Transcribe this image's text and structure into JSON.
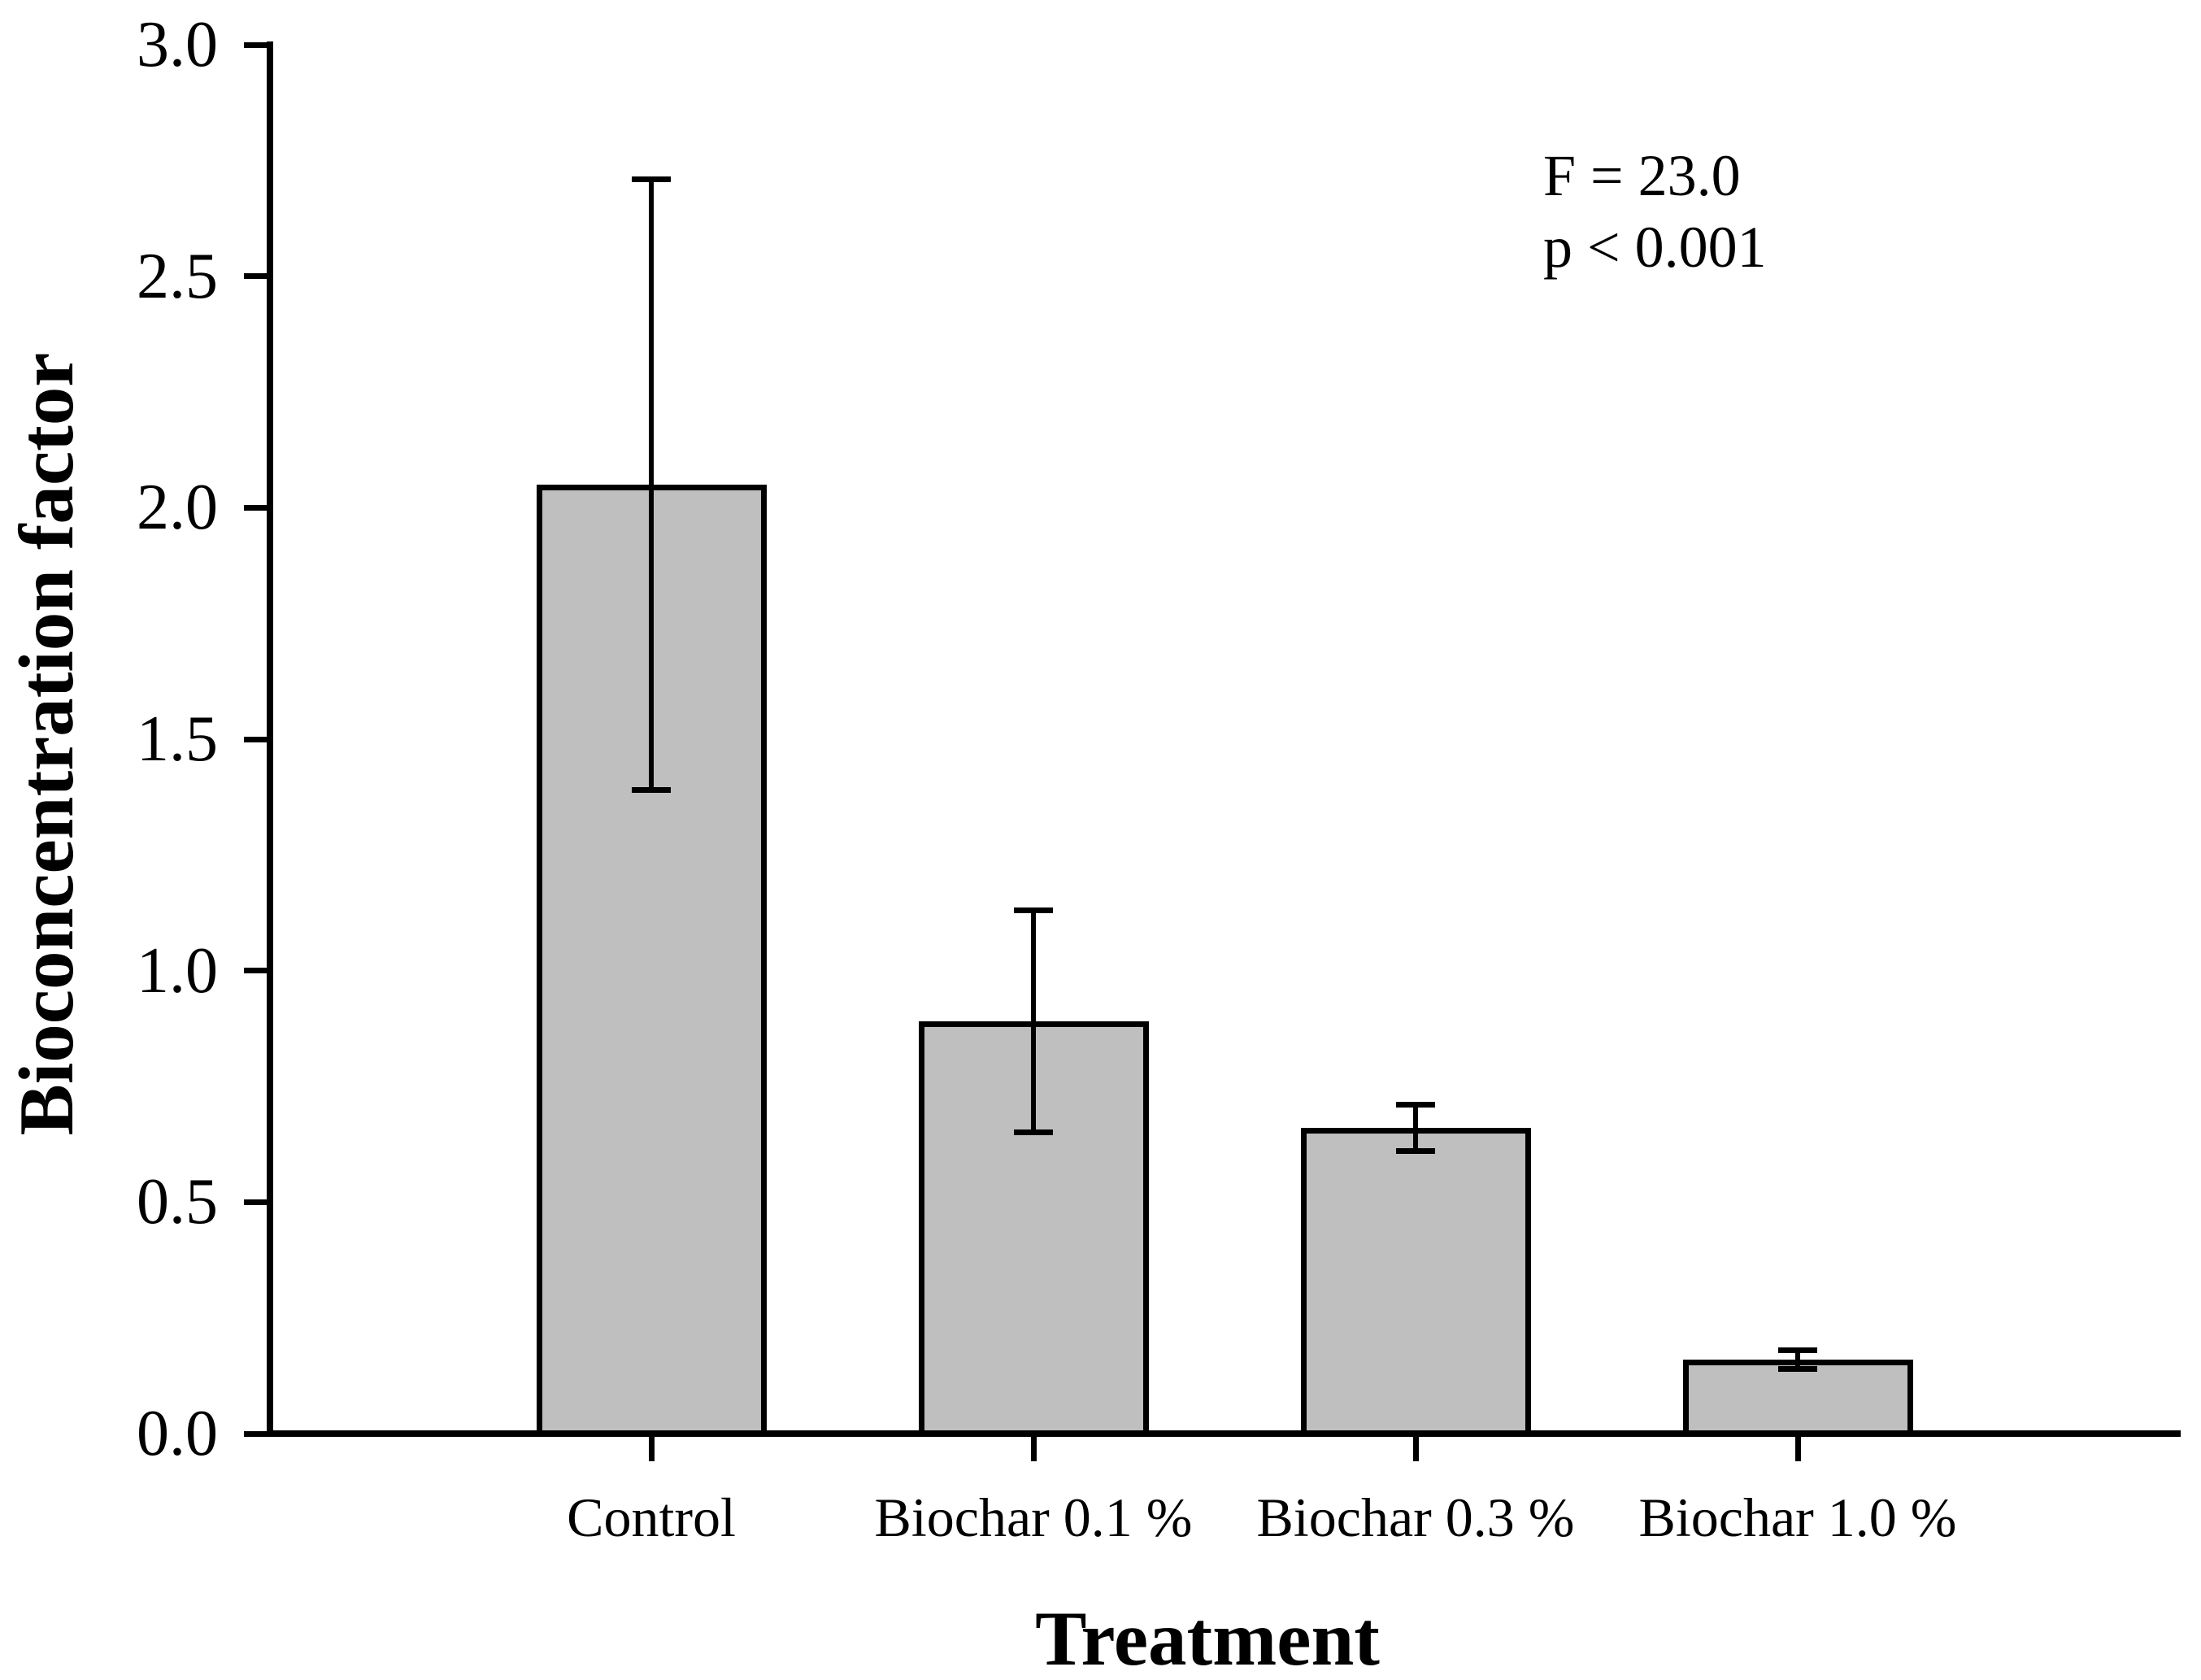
{
  "figure": {
    "background": "#ffffff",
    "ink_color": "#000000"
  },
  "chart_data": {
    "type": "bar",
    "title": "",
    "xlabel": "Treatment",
    "ylabel": "Bioconcentration factor",
    "categories": [
      "Control",
      "Biochar 0.1 %",
      "Biochar 0.3 %",
      "Biochar 1.0 %"
    ],
    "values": [
      2.05,
      0.89,
      0.66,
      0.16
    ],
    "errors": [
      0.66,
      0.24,
      0.05,
      0.02
    ],
    "error_style": "symmetric caps, plus and minus",
    "ylim": [
      0.0,
      3.0
    ],
    "ytick_step": 0.5,
    "ytick_labels": [
      "0.0",
      "0.5",
      "1.0",
      "1.5",
      "2.0",
      "2.5",
      "3.0"
    ],
    "grid": false,
    "legend": null,
    "bar_fill": "#bfbfbf",
    "bar_border": "#000000",
    "annotation": [
      "F = 23.0",
      "p < 0.001"
    ]
  }
}
